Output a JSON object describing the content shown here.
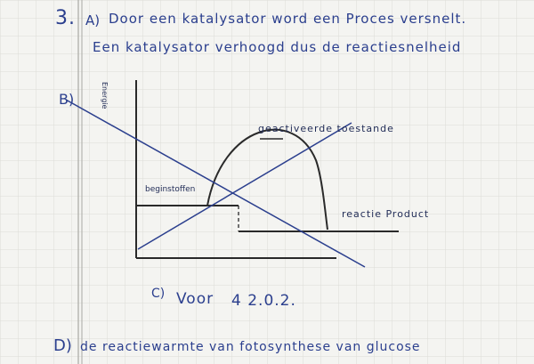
{
  "question_number": "3.",
  "lines": {
    "line1_mark": "A)",
    "line1": "Door een katalysator word een Proces versnelt.",
    "line2": "Een katalysator verhoogd dus de reactiesnelheid"
  },
  "diagram": {
    "mark": "B)",
    "y_axis_label": "Energie",
    "label_top": "geactiveerde toestande",
    "label_start": "beginstoffen",
    "label_end": "reactie Product"
  },
  "answer_c": {
    "mark": "C)",
    "text": "Voor",
    "value": "4 2.0.2."
  },
  "answer_d": {
    "mark": "D)",
    "text": "de reactiewarmte van fotosynthese van glucose"
  },
  "colors": {
    "paper": "#f4f4f1",
    "grid": "#dcdcd6",
    "margin_line": "#a9a9a4",
    "ink": "#2b3f8e",
    "ink_dark": "#1f2a55"
  }
}
